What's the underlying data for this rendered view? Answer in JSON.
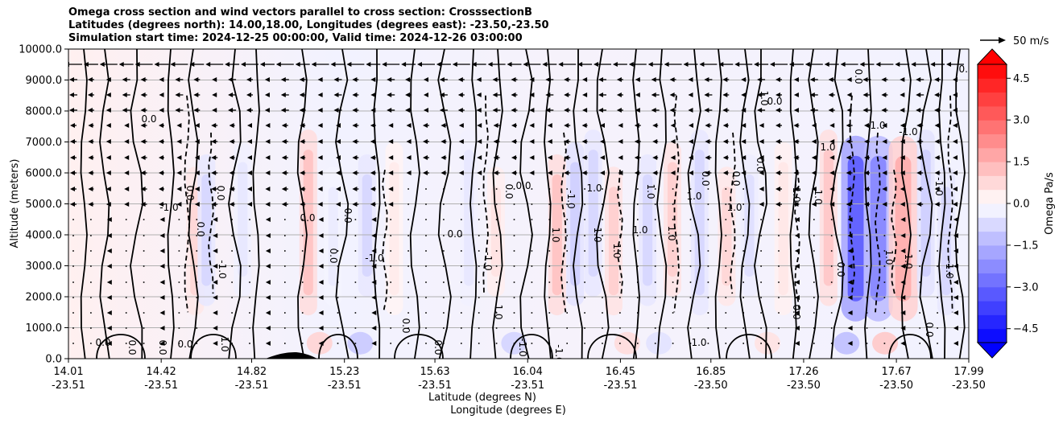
{
  "figure": {
    "title_lines": [
      "Omega cross section and wind vectors parallel to cross section: CrosssectionB",
      "Latitudes (degrees north): 14.00,18.00, Longitudes (degrees east): -23.50,-23.50",
      "Simulation start time: 2024-12-25 00:00:00, Valid time: 2024-12-26 03:00:00"
    ]
  },
  "chart_data": {
    "type": "heatmap",
    "title": "Omega cross section and wind vectors parallel to cross section: CrosssectionB",
    "xlabel_lines": [
      "Latitude (degrees N)",
      "Longitude (degrees E)"
    ],
    "ylabel": "Altitude (meters)",
    "ylim": [
      0,
      10000
    ],
    "y_ticks": [
      "0.0",
      "1000.0",
      "2000.0",
      "3000.0",
      "4000.0",
      "5000.0",
      "6000.0",
      "7000.0",
      "8000.0",
      "9000.0",
      "10000.0"
    ],
    "x_ticks": [
      {
        "lat": "14.01",
        "lon": "-23.51"
      },
      {
        "lat": "14.42",
        "lon": "-23.51"
      },
      {
        "lat": "14.82",
        "lon": "-23.51"
      },
      {
        "lat": "15.23",
        "lon": "-23.51"
      },
      {
        "lat": "15.63",
        "lon": "-23.51"
      },
      {
        "lat": "16.04",
        "lon": "-23.51"
      },
      {
        "lat": "16.45",
        "lon": "-23.51"
      },
      {
        "lat": "16.85",
        "lon": "-23.50"
      },
      {
        "lat": "17.26",
        "lon": "-23.50"
      },
      {
        "lat": "17.67",
        "lon": "-23.50"
      },
      {
        "lat": "17.99",
        "lon": "-23.50"
      }
    ],
    "grid": "horizontal",
    "colorbar": {
      "label": "Omega Pa/s",
      "range": [
        -5.0,
        5.0
      ],
      "ticks": [
        "4.5",
        "3.0",
        "1.5",
        "0.0",
        "−1.5",
        "−3.0",
        "−4.5"
      ],
      "cmap": "bwr",
      "extend": "both"
    },
    "quiver_key": {
      "label": "50 m/s"
    },
    "contour_labels": [
      "0.0",
      "1.0",
      "-1.0"
    ],
    "omega_bands": [
      {
        "lat": 14.57,
        "omega": 1.0
      },
      {
        "lat": 14.62,
        "omega": -1.0
      },
      {
        "lat": 14.78,
        "omega": -0.6
      },
      {
        "lat": 15.07,
        "omega": 1.5
      },
      {
        "lat": 15.18,
        "omega": -0.5
      },
      {
        "lat": 15.33,
        "omega": -1.0
      },
      {
        "lat": 15.45,
        "omega": 0.5
      },
      {
        "lat": 15.78,
        "omega": -0.6
      },
      {
        "lat": 15.9,
        "omega": 0.7
      },
      {
        "lat": 16.17,
        "omega": 1.5
      },
      {
        "lat": 16.25,
        "omega": -1.2
      },
      {
        "lat": 16.33,
        "omega": -1.0
      },
      {
        "lat": 16.42,
        "omega": 1.2
      },
      {
        "lat": 16.57,
        "omega": -1.0
      },
      {
        "lat": 16.68,
        "omega": 1.2
      },
      {
        "lat": 16.8,
        "omega": -1.0
      },
      {
        "lat": 16.92,
        "omega": 1.0
      },
      {
        "lat": 17.02,
        "omega": -0.8
      },
      {
        "lat": 17.17,
        "omega": 0.6
      },
      {
        "lat": 17.37,
        "omega": 1.4
      },
      {
        "lat": 17.49,
        "omega": -4.0
      },
      {
        "lat": 17.59,
        "omega": -3.0
      },
      {
        "lat": 17.7,
        "omega": 2.0
      },
      {
        "lat": 17.8,
        "omega": -1.2
      },
      {
        "lat": 17.89,
        "omega": -1.0
      }
    ]
  }
}
